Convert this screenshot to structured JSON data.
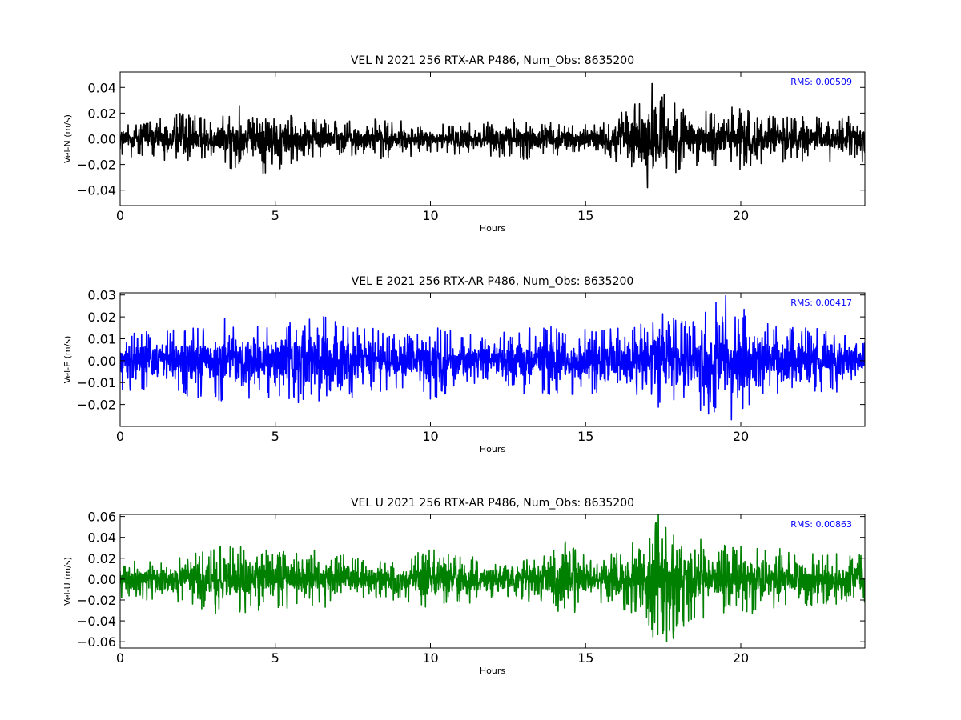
{
  "chart_data": [
    {
      "type": "line",
      "title": "VEL N 2021 256 RTX-AR  P486, Num_Obs: 8635200",
      "xlabel": "Hours",
      "ylabel": "Vel-N (m/s)",
      "xlim": [
        0,
        24
      ],
      "ylim": [
        -0.052,
        0.052
      ],
      "xticks": [
        0,
        5,
        10,
        15,
        20
      ],
      "xtick_labels": [
        "0",
        "5",
        "10",
        "15",
        "20"
      ],
      "yticks": [
        -0.04,
        -0.02,
        0.0,
        0.02,
        0.04
      ],
      "ytick_labels": [
        "−0.04",
        "−0.02",
        "0.00",
        "0.02",
        "0.04"
      ],
      "color": "#000000",
      "annotation": "RMS:  0.00509",
      "annotation_color": "#0000ff",
      "envelope": {
        "x": [
          0,
          1,
          2,
          3,
          3.7,
          4.5,
          5.2,
          6,
          7,
          8,
          9,
          10,
          11,
          12,
          13,
          14,
          15,
          15.8,
          16.5,
          17.0,
          17.3,
          17.6,
          18.2,
          19,
          19.7,
          20.5,
          21.5,
          22.5,
          24
        ],
        "y": [
          0.013,
          0.012,
          0.018,
          0.013,
          0.022,
          0.025,
          0.021,
          0.014,
          0.012,
          0.014,
          0.013,
          0.01,
          0.011,
          0.012,
          0.014,
          0.012,
          0.01,
          0.013,
          0.025,
          0.04,
          0.052,
          0.03,
          0.02,
          0.019,
          0.023,
          0.017,
          0.016,
          0.015,
          0.017
        ]
      },
      "rms": 0.00509
    },
    {
      "type": "line",
      "title": "VEL E 2021 256 RTX-AR  P486, Num_Obs: 8635200",
      "xlabel": "Hours",
      "ylabel": "Vel-E (m/s)",
      "xlim": [
        0,
        24
      ],
      "ylim": [
        -0.03,
        0.031
      ],
      "xticks": [
        0,
        5,
        10,
        15,
        20
      ],
      "xtick_labels": [
        "0",
        "5",
        "10",
        "15",
        "20"
      ],
      "yticks": [
        -0.02,
        -0.01,
        0.0,
        0.01,
        0.02,
        0.03
      ],
      "ytick_labels": [
        "−0.02",
        "−0.01",
        "0.00",
        "0.01",
        "0.02",
        "0.03"
      ],
      "color": "#0000ff",
      "annotation": "RMS:  0.00417",
      "annotation_color": "#0000ff",
      "envelope": {
        "x": [
          0,
          1,
          2,
          3,
          3.5,
          4.5,
          5.5,
          6.5,
          7.5,
          8.5,
          9.5,
          10,
          11,
          12,
          13,
          14,
          15,
          16,
          17,
          17.4,
          18,
          19,
          19.5,
          20,
          20.5,
          21.5,
          22.5,
          24
        ],
        "y": [
          0.012,
          0.012,
          0.014,
          0.016,
          0.018,
          0.014,
          0.017,
          0.018,
          0.016,
          0.012,
          0.01,
          0.016,
          0.01,
          0.011,
          0.013,
          0.014,
          0.013,
          0.014,
          0.015,
          0.022,
          0.016,
          0.022,
          0.026,
          0.022,
          0.016,
          0.014,
          0.013,
          0.012
        ]
      },
      "rms": 0.00417
    },
    {
      "type": "line",
      "title": "VEL U 2021 256 RTX-AR  P486, Num_Obs: 8635200",
      "xlabel": "Hours",
      "ylabel": "Vel-U (m/s)",
      "xlim": [
        0,
        24
      ],
      "ylim": [
        -0.066,
        0.062
      ],
      "xticks": [
        0,
        5,
        10,
        15,
        20
      ],
      "xtick_labels": [
        "0",
        "5",
        "10",
        "15",
        "20"
      ],
      "yticks": [
        -0.06,
        -0.04,
        -0.02,
        0.0,
        0.02,
        0.04,
        0.06
      ],
      "ytick_labels": [
        "−0.06",
        "−0.04",
        "−0.02",
        "0.00",
        "0.02",
        "0.04",
        "0.06"
      ],
      "color": "#008000",
      "annotation": "RMS:  0.00863",
      "annotation_color": "#0000ff",
      "envelope": {
        "x": [
          0,
          1,
          2,
          2.5,
          3.5,
          5,
          6,
          7,
          8,
          9,
          10,
          11,
          12,
          13,
          14,
          14.5,
          15,
          16,
          16.8,
          17.4,
          18,
          19,
          20,
          20.5,
          21.5,
          22.5,
          24
        ],
        "y": [
          0.02,
          0.018,
          0.022,
          0.03,
          0.03,
          0.024,
          0.026,
          0.022,
          0.016,
          0.018,
          0.026,
          0.022,
          0.016,
          0.018,
          0.026,
          0.034,
          0.02,
          0.022,
          0.035,
          0.06,
          0.045,
          0.03,
          0.028,
          0.03,
          0.024,
          0.022,
          0.02
        ]
      },
      "rms": 0.00863
    }
  ]
}
